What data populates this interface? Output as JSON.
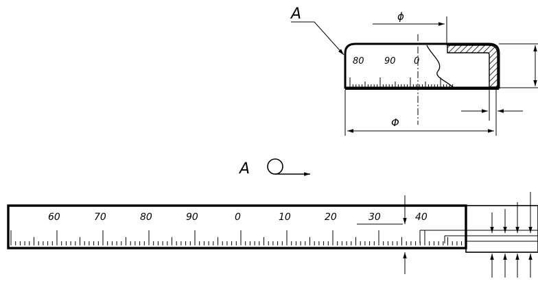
{
  "view_label": "A",
  "leader_label": "A",
  "dim_top_small": "ϕ",
  "dim_top_large": "Φ",
  "top_scale": {
    "labels": [
      "80",
      "90",
      "0"
    ]
  },
  "bottom_scale": {
    "labels": [
      "60",
      "70",
      "80",
      "90",
      "0",
      "10",
      "20",
      "30",
      "40"
    ]
  }
}
